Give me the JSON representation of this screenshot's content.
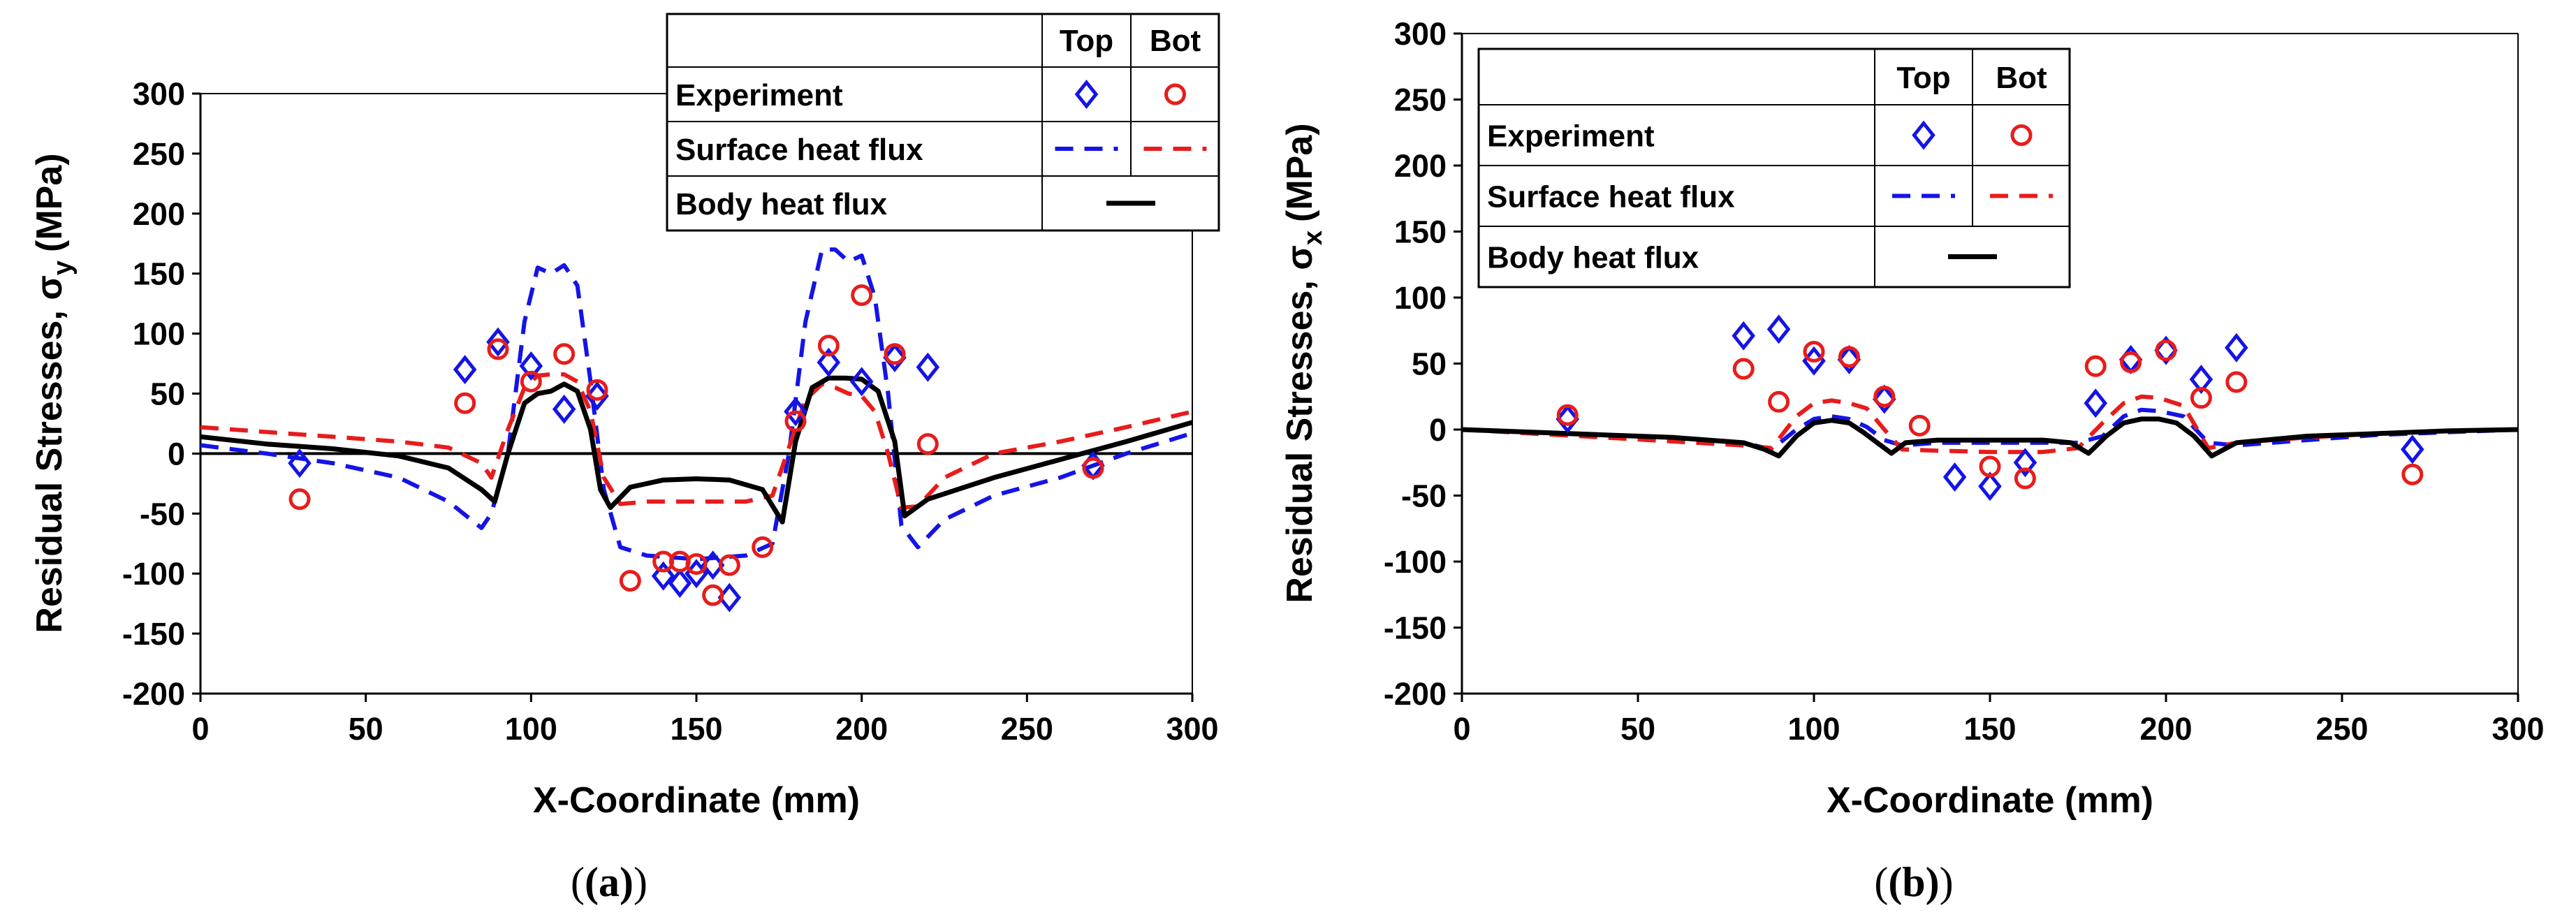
{
  "colors": {
    "top": "#1414e6",
    "bot": "#e81c1c",
    "body": "#000000"
  },
  "legend": {
    "headers": [
      "Top",
      "Bot"
    ],
    "rows": [
      {
        "label": "Experiment",
        "kind": "markers"
      },
      {
        "label": "Surface heat flux",
        "kind": "dashed"
      },
      {
        "label": "Body heat flux",
        "kind": "solid"
      }
    ]
  },
  "chart_data": [
    {
      "type": "scatter",
      "panel": "(a)",
      "ylabel": "Residual Stresses, σ",
      "ylabel_sub": "y",
      "ylabel_unit": "(MPa)",
      "xlabel": "X-Coordinate (mm)",
      "xlim": [
        0,
        300
      ],
      "ylim": [
        -200,
        300
      ],
      "xticks": [
        "0",
        "50",
        "100",
        "150",
        "200",
        "250",
        "300"
      ],
      "yticks": [
        "-200",
        "-150",
        "-100",
        "-50",
        "0",
        "50",
        "100",
        "150",
        "200",
        "250",
        "300"
      ],
      "series": [
        {
          "name": "Experiment Top",
          "kind": "markers",
          "marker": "diamond",
          "color": "#1414e6",
          "x": [
            30,
            80,
            90,
            100,
            110,
            120,
            140,
            145,
            150,
            155,
            160,
            180,
            190,
            200,
            210,
            220,
            270
          ],
          "y": [
            -8,
            70,
            93,
            73,
            37,
            48,
            -102,
            -108,
            -100,
            -93,
            -120,
            35,
            76,
            60,
            80,
            72,
            -10
          ]
        },
        {
          "name": "Experiment Bot",
          "kind": "markers",
          "marker": "circle",
          "color": "#e81c1c",
          "x": [
            30,
            80,
            90,
            100,
            110,
            120,
            130,
            140,
            145,
            150,
            155,
            160,
            170,
            180,
            190,
            200,
            210,
            220,
            270
          ],
          "y": [
            -38,
            42,
            87,
            60,
            83,
            53,
            -106,
            -90,
            -90,
            -92,
            -118,
            -93,
            -78,
            27,
            90,
            132,
            83,
            8,
            -12
          ]
        },
        {
          "name": "Surface heat flux Top",
          "kind": "dashed",
          "color": "#1414e6",
          "x": [
            0,
            20,
            40,
            60,
            75,
            85,
            88,
            93,
            98,
            102,
            106,
            110,
            114,
            118,
            122,
            127,
            135,
            150,
            165,
            173,
            178,
            183,
            188,
            192,
            196,
            200,
            204,
            208,
            212,
            217,
            225,
            240,
            260,
            280,
            300
          ],
          "y": [
            7,
            0,
            -8,
            -20,
            -40,
            -62,
            -50,
            0,
            110,
            155,
            150,
            157,
            140,
            60,
            -30,
            -78,
            -85,
            -88,
            -85,
            -75,
            0,
            110,
            170,
            170,
            160,
            165,
            130,
            50,
            -60,
            -78,
            -55,
            -35,
            -20,
            0,
            17
          ]
        },
        {
          "name": "Surface heat flux Bot",
          "kind": "dashed",
          "color": "#e81c1c",
          "x": [
            0,
            20,
            40,
            60,
            75,
            85,
            88,
            93,
            98,
            102,
            106,
            110,
            114,
            118,
            122,
            127,
            135,
            150,
            165,
            173,
            178,
            183,
            188,
            192,
            196,
            200,
            204,
            208,
            212,
            217,
            225,
            240,
            260,
            280,
            300
          ],
          "y": [
            22,
            18,
            14,
            10,
            5,
            -8,
            -20,
            20,
            55,
            65,
            66,
            66,
            60,
            35,
            -20,
            -42,
            -40,
            -40,
            -40,
            -35,
            5,
            45,
            58,
            55,
            50,
            48,
            35,
            0,
            -45,
            -44,
            -20,
            0,
            10,
            22,
            35
          ]
        },
        {
          "name": "Body heat flux",
          "kind": "solid",
          "color": "#000000",
          "x": [
            0,
            20,
            40,
            60,
            75,
            85,
            89,
            93,
            98,
            102,
            106,
            110,
            114,
            118,
            121,
            124,
            130,
            140,
            150,
            160,
            170,
            176,
            180,
            185,
            190,
            195,
            200,
            205,
            210,
            213,
            220,
            240,
            260,
            280,
            300
          ],
          "y": [
            14,
            8,
            4,
            -2,
            -12,
            -30,
            -40,
            0,
            42,
            50,
            52,
            58,
            52,
            20,
            -30,
            -45,
            -28,
            -22,
            -21,
            -22,
            -30,
            -57,
            10,
            55,
            63,
            63,
            62,
            52,
            10,
            -52,
            -38,
            -20,
            -5,
            10,
            26
          ]
        }
      ]
    },
    {
      "type": "scatter",
      "panel": "(b)",
      "ylabel": "Residual Stresses, σ",
      "ylabel_sub": "x",
      "ylabel_unit": "(MPa)",
      "xlabel": "X-Coordinate (mm)",
      "xlim": [
        0,
        300
      ],
      "ylim": [
        -200,
        300
      ],
      "xticks": [
        "0",
        "50",
        "100",
        "150",
        "200",
        "250",
        "300"
      ],
      "yticks": [
        "-200",
        "-150",
        "-100",
        "-50",
        "0",
        "50",
        "100",
        "150",
        "200",
        "250",
        "300"
      ],
      "series": [
        {
          "name": "Experiment Top",
          "kind": "markers",
          "marker": "diamond",
          "color": "#1414e6",
          "x": [
            30,
            80,
            90,
            100,
            110,
            120,
            140,
            150,
            160,
            180,
            190,
            200,
            210,
            220,
            270
          ],
          "y": [
            8,
            71,
            76,
            52,
            53,
            23,
            -36,
            -43,
            -25,
            20,
            53,
            60,
            38,
            62,
            -15
          ]
        },
        {
          "name": "Experiment Bot",
          "kind": "markers",
          "marker": "circle",
          "color": "#e81c1c",
          "x": [
            30,
            80,
            90,
            100,
            110,
            120,
            130,
            150,
            160,
            180,
            190,
            200,
            210,
            220,
            270
          ],
          "y": [
            11,
            46,
            21,
            59,
            55,
            25,
            3,
            -28,
            -37,
            48,
            51,
            60,
            24,
            36,
            -34
          ]
        },
        {
          "name": "Surface heat flux Top",
          "kind": "dashed",
          "color": "#1414e6",
          "x": [
            0,
            20,
            40,
            60,
            80,
            88,
            95,
            100,
            105,
            110,
            115,
            120,
            125,
            135,
            150,
            165,
            175,
            182,
            188,
            193,
            198,
            205,
            212,
            220,
            240,
            260,
            280,
            300
          ],
          "y": [
            0,
            -2,
            -4,
            -6,
            -10,
            -15,
            0,
            8,
            10,
            8,
            2,
            -8,
            -12,
            -10,
            -10,
            -10,
            -10,
            -5,
            10,
            15,
            14,
            10,
            -10,
            -12,
            -8,
            -4,
            -2,
            0
          ]
        },
        {
          "name": "Surface heat flux Bot",
          "kind": "dashed",
          "color": "#e81c1c",
          "x": [
            0,
            20,
            40,
            60,
            80,
            88,
            95,
            100,
            105,
            110,
            115,
            120,
            125,
            135,
            150,
            165,
            175,
            182,
            188,
            193,
            198,
            205,
            212,
            220,
            240,
            260,
            280,
            300
          ],
          "y": [
            0,
            -3,
            -6,
            -9,
            -12,
            -14,
            10,
            20,
            22,
            20,
            16,
            0,
            -15,
            -16,
            -17,
            -17,
            -14,
            5,
            20,
            25,
            24,
            18,
            -14,
            -10,
            -6,
            -3,
            -1,
            0
          ]
        },
        {
          "name": "Body heat flux",
          "kind": "solid",
          "color": "#000000",
          "x": [
            0,
            20,
            40,
            60,
            80,
            86,
            90,
            95,
            100,
            105,
            110,
            114,
            118,
            122,
            126,
            135,
            150,
            165,
            173,
            178,
            183,
            188,
            193,
            198,
            203,
            208,
            213,
            220,
            240,
            260,
            280,
            300
          ],
          "y": [
            0,
            -2,
            -4,
            -6,
            -10,
            -15,
            -20,
            -5,
            5,
            7,
            5,
            -2,
            -10,
            -18,
            -10,
            -8,
            -8,
            -8,
            -10,
            -18,
            -5,
            5,
            8,
            8,
            5,
            -5,
            -20,
            -10,
            -5,
            -3,
            -1,
            0
          ]
        }
      ]
    }
  ]
}
